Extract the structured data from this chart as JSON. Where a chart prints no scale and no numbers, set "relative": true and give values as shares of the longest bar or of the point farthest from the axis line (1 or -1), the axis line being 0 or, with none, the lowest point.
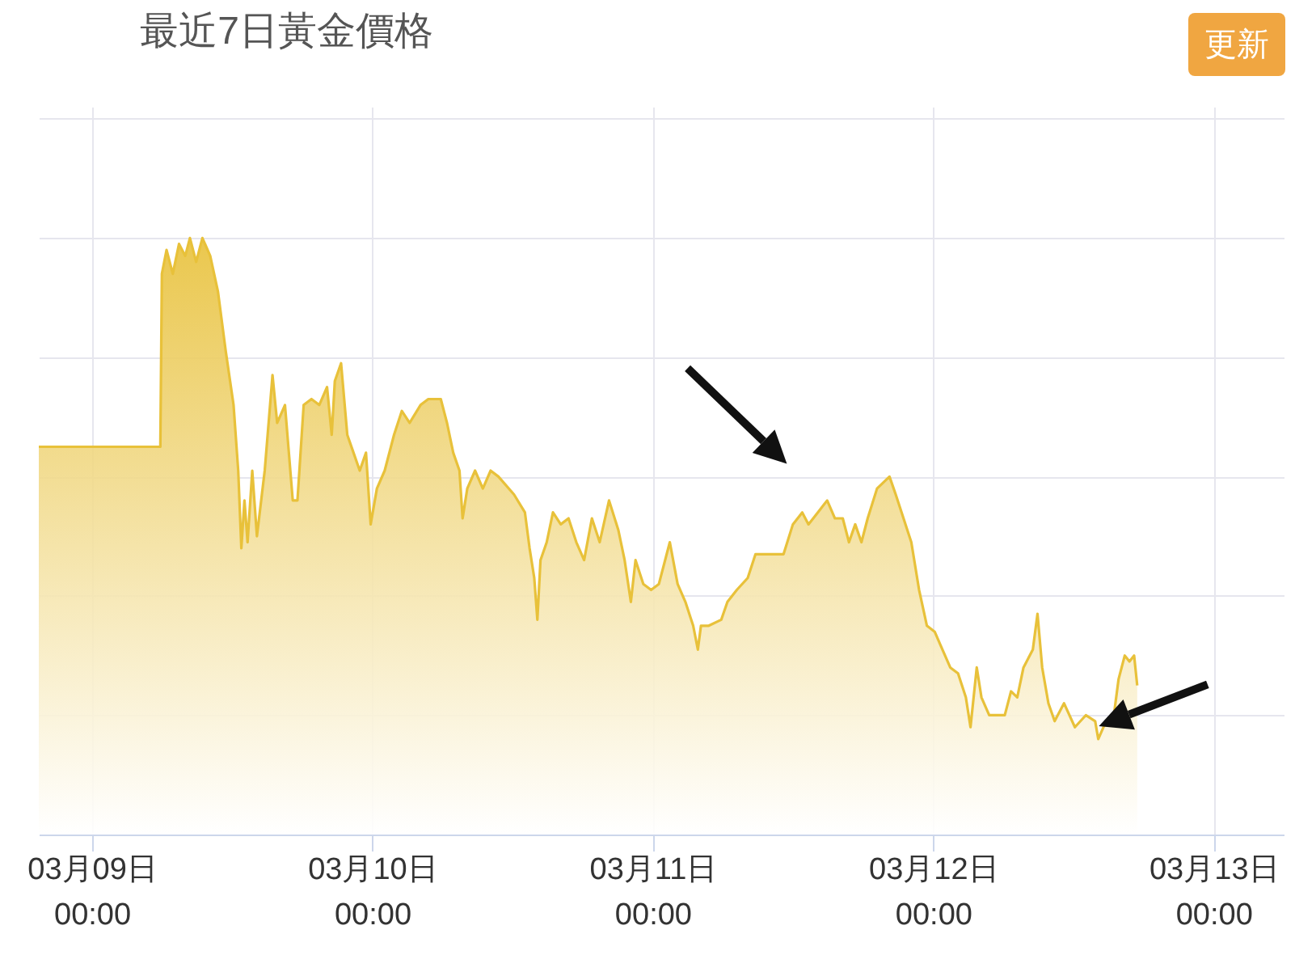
{
  "chart_data": {
    "type": "area",
    "title": "最近7日黃金價格",
    "relative": true,
    "grid": true,
    "annotations": [
      "更新"
    ],
    "x": [
      "--03-08T19:28",
      "--03-09T05:52",
      "--03-09T06:00",
      "--03-09T06:24",
      "--03-09T06:56",
      "--03-09T07:28",
      "--03-09T08:00",
      "--03-09T08:24",
      "--03-09T08:56",
      "--03-09T09:28",
      "--03-09T10:08",
      "--03-09T10:48",
      "--03-09T11:28",
      "--03-09T12:08",
      "--03-09T12:32",
      "--03-09T12:48",
      "--03-09T13:04",
      "--03-09T13:20",
      "--03-09T13:44",
      "--03-09T14:08",
      "--03-09T14:48",
      "--03-09T15:28",
      "--03-09T15:52",
      "--03-09T16:32",
      "--03-09T17:12",
      "--03-09T17:36",
      "--03-09T18:08",
      "--03-09T18:48",
      "--03-09T19:28",
      "--03-09T20:08",
      "--03-09T20:32",
      "--03-09T20:48",
      "--03-09T21:20",
      "--03-09T21:52",
      "--03-09T22:24",
      "--03-09T22:56",
      "--03-09T23:28",
      "--03-09T23:52",
      "--03-10T00:24",
      "--03-10T01:04",
      "--03-10T01:52",
      "--03-10T02:32",
      "--03-10T03:12",
      "--03-10T04:08",
      "--03-10T04:48",
      "--03-10T05:52",
      "--03-10T06:24",
      "--03-10T06:56",
      "--03-10T07:28",
      "--03-10T07:44",
      "--03-10T08:08",
      "--03-10T08:48",
      "--03-10T09:28",
      "--03-10T10:08",
      "--03-10T10:48",
      "--03-10T12:08",
      "--03-10T13:04",
      "--03-10T13:28",
      "--03-10T13:52",
      "--03-10T14:08",
      "--03-10T14:24",
      "--03-10T14:56",
      "--03-10T15:28",
      "--03-10T16:08",
      "--03-10T16:48",
      "--03-10T17:28",
      "--03-10T18:08",
      "--03-10T18:48",
      "--03-10T19:28",
      "--03-10T20:16",
      "--03-10T21:04",
      "--03-10T21:36",
      "--03-10T22:08",
      "--03-10T22:32",
      "--03-10T23:12",
      "--03-10T23:52",
      "--03-11T00:32",
      "--03-11T01:28",
      "--03-11T02:08",
      "--03-11T02:48",
      "--03-11T03:28",
      "--03-11T03:52",
      "--03-11T04:08",
      "--03-11T04:48",
      "--03-11T05:52",
      "--03-11T06:24",
      "--03-11T07:12",
      "--03-11T08:08",
      "--03-11T08:48",
      "--03-11T09:28",
      "--03-11T10:08",
      "--03-11T11:12",
      "--03-11T12:00",
      "--03-11T12:48",
      "--03-11T13:20",
      "--03-11T14:08",
      "--03-11T14:56",
      "--03-11T15:36",
      "--03-11T16:16",
      "--03-11T16:48",
      "--03-11T17:20",
      "--03-11T17:52",
      "--03-11T18:24",
      "--03-11T19:12",
      "--03-11T20:16",
      "--03-11T20:48",
      "--03-11T21:28",
      "--03-11T22:08",
      "--03-11T22:48",
      "--03-11T23:28",
      "--03-12T00:08",
      "--03-12T00:48",
      "--03-12T01:28",
      "--03-12T02:08",
      "--03-12T02:48",
      "--03-12T03:12",
      "--03-12T03:44",
      "--03-12T04:08",
      "--03-12T04:48",
      "--03-12T06:08",
      "--03-12T06:40",
      "--03-12T07:12",
      "--03-12T07:44",
      "--03-12T08:32",
      "--03-12T08:56",
      "--03-12T09:20",
      "--03-12T09:52",
      "--03-12T10:24",
      "--03-12T11:12",
      "--03-12T12:08",
      "--03-12T13:04",
      "--03-12T13:52",
      "--03-12T14:08",
      "--03-12T14:48",
      "--03-12T15:28",
      "--03-12T15:52",
      "--03-12T16:24",
      "--03-12T16:48",
      "--03-12T17:12",
      "--03-12T17:28"
    ],
    "series": [
      {
        "color": "#e8c13a",
        "values": [
          0.65,
          0.65,
          0.94,
          0.98,
          0.94,
          0.99,
          0.97,
          1.0,
          0.96,
          1.0,
          0.97,
          0.91,
          0.81,
          0.72,
          0.61,
          0.48,
          0.56,
          0.49,
          0.61,
          0.5,
          0.61,
          0.77,
          0.69,
          0.72,
          0.56,
          0.56,
          0.72,
          0.73,
          0.72,
          0.75,
          0.67,
          0.76,
          0.79,
          0.67,
          0.64,
          0.61,
          0.64,
          0.52,
          0.58,
          0.61,
          0.67,
          0.71,
          0.69,
          0.72,
          0.73,
          0.73,
          0.69,
          0.64,
          0.61,
          0.53,
          0.58,
          0.61,
          0.58,
          0.61,
          0.6,
          0.57,
          0.54,
          0.48,
          0.43,
          0.36,
          0.46,
          0.49,
          0.54,
          0.52,
          0.53,
          0.49,
          0.46,
          0.53,
          0.49,
          0.56,
          0.51,
          0.46,
          0.39,
          0.46,
          0.42,
          0.41,
          0.42,
          0.49,
          0.42,
          0.39,
          0.35,
          0.31,
          0.35,
          0.35,
          0.36,
          0.39,
          0.41,
          0.43,
          0.47,
          0.47,
          0.47,
          0.47,
          0.52,
          0.54,
          0.52,
          0.54,
          0.56,
          0.53,
          0.53,
          0.49,
          0.52,
          0.49,
          0.53,
          0.58,
          0.6,
          0.57,
          0.53,
          0.49,
          0.41,
          0.35,
          0.34,
          0.31,
          0.28,
          0.27,
          0.23,
          0.18,
          0.28,
          0.23,
          0.2,
          0.2,
          0.24,
          0.23,
          0.28,
          0.31,
          0.37,
          0.28,
          0.22,
          0.19,
          0.22,
          0.18,
          0.2,
          0.19,
          0.16,
          0.19,
          0.2,
          0.26,
          0.3,
          0.29,
          0.3,
          0.25
        ]
      }
    ],
    "xlim": [
      "--03-08T19:28",
      "--03-13T06:00"
    ],
    "xticks": [
      {
        "value": "--03-09T00:00",
        "label": "03月09日\n00:00"
      },
      {
        "value": "--03-10T00:00",
        "label": "03月10日\n00:00"
      },
      {
        "value": "--03-11T00:00",
        "label": "03月11日\n00:00"
      },
      {
        "value": "--03-12T00:00",
        "label": "03月12日\n00:00"
      },
      {
        "value": "--03-13T00:00",
        "label": "03月13日\n00:00"
      }
    ]
  }
}
